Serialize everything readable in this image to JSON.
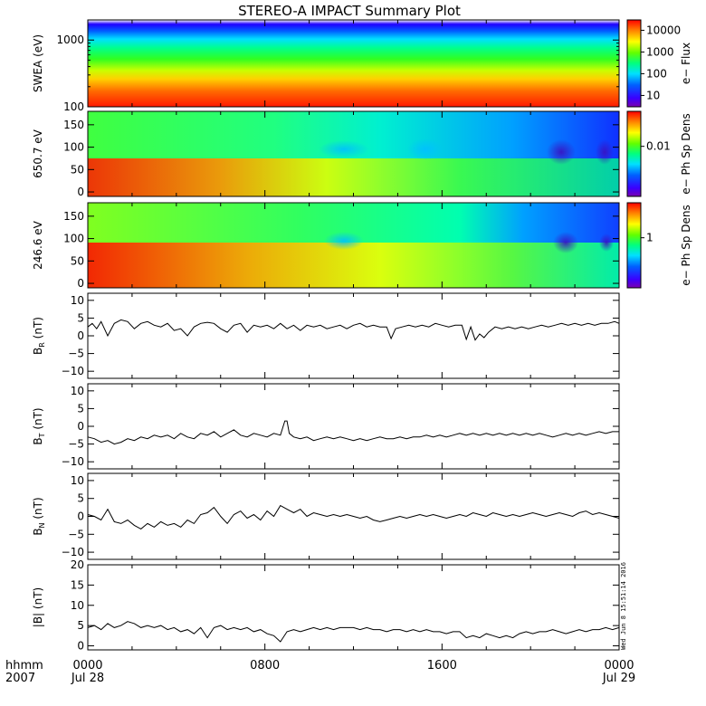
{
  "title": "STEREO-A IMPACT Summary Plot",
  "time_axis": {
    "row1_label": "hhmm",
    "row2_label": "2007",
    "ticks": [
      {
        "time": "0000",
        "date": "Jul 28",
        "hour": 0
      },
      {
        "time": "0800",
        "date": "",
        "hour": 8
      },
      {
        "time": "1600",
        "date": "",
        "hour": 16
      },
      {
        "time": "0000",
        "date": "Jul 29",
        "hour": 24
      }
    ],
    "range_hours": [
      0,
      24
    ]
  },
  "timestamp": "Wed Jun  8 15:51:14 2016",
  "chart_data": [
    {
      "type": "heatmap",
      "name": "swea",
      "ylabel": "SWEA (eV)",
      "yscale": "log",
      "ylim": [
        100,
        2000
      ],
      "yticks": [
        100,
        1000
      ],
      "ytick_labels": [
        "100",
        "1000"
      ],
      "colorbar": {
        "label": "e− Flux",
        "scale": "log",
        "ticks": [
          10,
          100,
          1000,
          10000
        ],
        "tick_labels": [
          "10",
          "100",
          "1000",
          "10000"
        ],
        "range": [
          3,
          30000
        ]
      },
      "z_description": "flux decreases with energy: red at 100 eV, green near 500 eV, blue above 1500 eV"
    },
    {
      "type": "heatmap",
      "name": "pad-650",
      "ylabel": "650.7 eV",
      "ylim": [
        -10,
        180
      ],
      "yticks": [
        0,
        50,
        100,
        150
      ],
      "ytick_labels": [
        "0",
        "50",
        "100",
        "150"
      ],
      "colorbar": {
        "label": "e− Ph Sp Dens",
        "scale": "log",
        "ticks": [
          0.01
        ],
        "tick_labels": [
          "0.01"
        ],
        "range": [
          0.001,
          0.05
        ]
      }
    },
    {
      "type": "heatmap",
      "name": "pad-246",
      "ylabel": "246.6 eV",
      "ylim": [
        -10,
        180
      ],
      "yticks": [
        0,
        50,
        100,
        150
      ],
      "ytick_labels": [
        "0",
        "50",
        "100",
        "150"
      ],
      "colorbar": {
        "label": "e− Ph Sp Dens",
        "scale": "log",
        "ticks": [
          1
        ],
        "tick_labels": [
          "1"
        ],
        "range": [
          0.1,
          5
        ]
      }
    },
    {
      "type": "line",
      "name": "br",
      "ylabel": "B",
      "ylabel_sub": "R",
      "ylabel_unit": "(nT)",
      "ylim": [
        -12,
        12
      ],
      "yticks": [
        -10,
        -5,
        0,
        5,
        10
      ],
      "ytick_labels": [
        "−10",
        "−5",
        "0",
        "5",
        "10"
      ],
      "x": [
        0,
        0.2,
        0.4,
        0.6,
        0.9,
        1.2,
        1.5,
        1.8,
        2.1,
        2.4,
        2.7,
        3.0,
        3.3,
        3.6,
        3.9,
        4.2,
        4.5,
        4.8,
        5.1,
        5.4,
        5.7,
        6.0,
        6.3,
        6.6,
        6.9,
        7.2,
        7.5,
        7.8,
        8.1,
        8.4,
        8.7,
        9.0,
        9.3,
        9.6,
        9.9,
        10.2,
        10.5,
        10.8,
        11.1,
        11.4,
        11.7,
        12.0,
        12.3,
        12.6,
        12.9,
        13.2,
        13.5,
        13.7,
        13.9,
        14.2,
        14.5,
        14.8,
        15.1,
        15.4,
        15.7,
        16.0,
        16.3,
        16.6,
        16.9,
        17.1,
        17.3,
        17.5,
        17.7,
        17.9,
        18.1,
        18.4,
        18.7,
        19.0,
        19.3,
        19.6,
        19.9,
        20.2,
        20.5,
        20.8,
        21.1,
        21.4,
        21.7,
        22.0,
        22.3,
        22.6,
        22.9,
        23.2,
        23.5,
        23.8,
        24.0
      ],
      "values": [
        2.5,
        3.5,
        2.0,
        4.0,
        0.0,
        3.5,
        4.5,
        4.0,
        2.0,
        3.5,
        4.0,
        3.0,
        2.5,
        3.5,
        1.5,
        2.0,
        0.0,
        2.5,
        3.5,
        3.8,
        3.5,
        2.0,
        1.0,
        3.0,
        3.5,
        1.0,
        3.0,
        2.5,
        3.0,
        2.0,
        3.5,
        2.0,
        3.0,
        1.5,
        3.0,
        2.5,
        3.0,
        2.0,
        2.5,
        3.0,
        2.0,
        3.0,
        3.5,
        2.5,
        3.0,
        2.5,
        2.5,
        -0.8,
        2.0,
        2.5,
        3.0,
        2.5,
        3.0,
        2.5,
        3.5,
        3.0,
        2.5,
        3.0,
        3.0,
        -1.0,
        2.5,
        -1.2,
        0.5,
        -0.5,
        1.0,
        2.5,
        2.0,
        2.5,
        2.0,
        2.5,
        2.0,
        2.5,
        3.0,
        2.5,
        3.0,
        3.5,
        3.0,
        3.5,
        3.0,
        3.5,
        3.0,
        3.5,
        3.5,
        4.0,
        3.5
      ]
    },
    {
      "type": "line",
      "name": "bt",
      "ylabel": "B",
      "ylabel_sub": "T",
      "ylabel_unit": "(nT)",
      "ylim": [
        -12,
        12
      ],
      "yticks": [
        -10,
        -5,
        0,
        5,
        10
      ],
      "ytick_labels": [
        "−10",
        "−5",
        "0",
        "5",
        "10"
      ],
      "x": [
        0,
        0.3,
        0.6,
        0.9,
        1.2,
        1.5,
        1.8,
        2.1,
        2.4,
        2.7,
        3.0,
        3.3,
        3.6,
        3.9,
        4.2,
        4.5,
        4.8,
        5.1,
        5.4,
        5.7,
        6.0,
        6.3,
        6.6,
        6.9,
        7.2,
        7.5,
        7.8,
        8.1,
        8.4,
        8.7,
        8.9,
        9.0,
        9.1,
        9.3,
        9.6,
        9.9,
        10.2,
        10.5,
        10.8,
        11.1,
        11.4,
        11.7,
        12.0,
        12.3,
        12.6,
        12.9,
        13.2,
        13.5,
        13.8,
        14.1,
        14.4,
        14.7,
        15.0,
        15.3,
        15.6,
        15.9,
        16.2,
        16.5,
        16.8,
        17.1,
        17.4,
        17.7,
        18.0,
        18.3,
        18.6,
        18.9,
        19.2,
        19.5,
        19.8,
        20.1,
        20.4,
        20.7,
        21.0,
        21.3,
        21.6,
        21.9,
        22.2,
        22.5,
        22.8,
        23.1,
        23.4,
        23.7,
        24.0
      ],
      "values": [
        -3.0,
        -3.5,
        -4.5,
        -4.0,
        -5.0,
        -4.5,
        -3.5,
        -4.0,
        -3.0,
        -3.5,
        -2.5,
        -3.0,
        -2.5,
        -3.5,
        -2.0,
        -3.0,
        -3.5,
        -2.0,
        -2.5,
        -1.5,
        -3.0,
        -2.0,
        -1.0,
        -2.5,
        -3.0,
        -2.0,
        -2.5,
        -3.0,
        -2.0,
        -2.5,
        1.5,
        1.5,
        -2.0,
        -3.0,
        -3.5,
        -3.0,
        -4.0,
        -3.5,
        -3.0,
        -3.5,
        -3.0,
        -3.5,
        -4.0,
        -3.5,
        -4.0,
        -3.5,
        -3.0,
        -3.5,
        -3.5,
        -3.0,
        -3.5,
        -3.0,
        -3.0,
        -2.5,
        -3.0,
        -2.5,
        -3.0,
        -2.5,
        -2.0,
        -2.5,
        -2.0,
        -2.5,
        -2.0,
        -2.5,
        -2.0,
        -2.5,
        -2.0,
        -2.5,
        -2.0,
        -2.5,
        -2.0,
        -2.5,
        -3.0,
        -2.5,
        -2.0,
        -2.5,
        -2.0,
        -2.5,
        -2.0,
        -1.5,
        -2.0,
        -1.5,
        -1.5
      ]
    },
    {
      "type": "line",
      "name": "bn",
      "ylabel": "B",
      "ylabel_sub": "N",
      "ylabel_unit": "(nT)",
      "ylim": [
        -12,
        12
      ],
      "yticks": [
        -10,
        -5,
        0,
        5,
        10
      ],
      "ytick_labels": [
        "−10",
        "−5",
        "0",
        "5",
        "10"
      ],
      "x": [
        0,
        0.3,
        0.6,
        0.9,
        1.2,
        1.5,
        1.8,
        2.1,
        2.4,
        2.7,
        3.0,
        3.3,
        3.6,
        3.9,
        4.2,
        4.5,
        4.8,
        5.1,
        5.4,
        5.7,
        6.0,
        6.3,
        6.6,
        6.9,
        7.2,
        7.5,
        7.8,
        8.1,
        8.4,
        8.7,
        9.0,
        9.3,
        9.6,
        9.9,
        10.2,
        10.5,
        10.8,
        11.1,
        11.4,
        11.7,
        12.0,
        12.3,
        12.6,
        12.9,
        13.2,
        13.5,
        13.8,
        14.1,
        14.4,
        14.7,
        15.0,
        15.3,
        15.6,
        15.9,
        16.2,
        16.5,
        16.8,
        17.1,
        17.4,
        17.7,
        18.0,
        18.3,
        18.6,
        18.9,
        19.2,
        19.5,
        19.8,
        20.1,
        20.4,
        20.7,
        21.0,
        21.3,
        21.6,
        21.9,
        22.2,
        22.5,
        22.8,
        23.1,
        23.4,
        23.7,
        24.0
      ],
      "values": [
        0.5,
        0.0,
        -1.0,
        2.0,
        -1.5,
        -2.0,
        -1.0,
        -2.5,
        -3.5,
        -2.0,
        -3.0,
        -1.5,
        -2.5,
        -2.0,
        -3.0,
        -1.0,
        -2.0,
        0.5,
        1.0,
        2.5,
        0.0,
        -2.0,
        0.5,
        1.5,
        -0.5,
        0.5,
        -1.0,
        1.5,
        0.0,
        3.0,
        2.0,
        1.0,
        2.0,
        0.0,
        1.0,
        0.5,
        0.0,
        0.5,
        0.0,
        0.5,
        0.0,
        -0.5,
        0.0,
        -1.0,
        -1.5,
        -1.0,
        -0.5,
        0.0,
        -0.5,
        0.0,
        0.5,
        0.0,
        0.5,
        0.0,
        -0.5,
        0.0,
        0.5,
        0.0,
        1.0,
        0.5,
        0.0,
        1.0,
        0.5,
        0.0,
        0.5,
        0.0,
        0.5,
        1.0,
        0.5,
        0.0,
        0.5,
        1.0,
        0.5,
        0.0,
        1.0,
        1.5,
        0.5,
        1.0,
        0.5,
        0.0,
        -0.5
      ]
    },
    {
      "type": "line",
      "name": "bmag",
      "ylabel": "|B| (nT)",
      "ylim": [
        -1,
        20
      ],
      "yticks": [
        0,
        5,
        10,
        15,
        20
      ],
      "ytick_labels": [
        "0",
        "5",
        "10",
        "15",
        "20"
      ],
      "x": [
        0,
        0.3,
        0.6,
        0.9,
        1.2,
        1.5,
        1.8,
        2.1,
        2.4,
        2.7,
        3.0,
        3.3,
        3.6,
        3.9,
        4.2,
        4.5,
        4.8,
        5.1,
        5.4,
        5.7,
        6.0,
        6.3,
        6.6,
        6.9,
        7.2,
        7.5,
        7.8,
        8.1,
        8.4,
        8.7,
        9.0,
        9.3,
        9.6,
        9.9,
        10.2,
        10.5,
        10.8,
        11.1,
        11.4,
        11.7,
        12.0,
        12.3,
        12.6,
        12.9,
        13.2,
        13.5,
        13.8,
        14.1,
        14.4,
        14.7,
        15.0,
        15.3,
        15.6,
        15.9,
        16.2,
        16.5,
        16.8,
        17.1,
        17.4,
        17.7,
        18.0,
        18.3,
        18.6,
        18.9,
        19.2,
        19.5,
        19.8,
        20.1,
        20.4,
        20.7,
        21.0,
        21.3,
        21.6,
        21.9,
        22.2,
        22.5,
        22.8,
        23.1,
        23.4,
        23.7,
        24.0
      ],
      "values": [
        4.5,
        5.0,
        4.0,
        5.5,
        4.5,
        5.0,
        6.0,
        5.5,
        4.5,
        5.0,
        4.5,
        5.0,
        4.0,
        4.5,
        3.5,
        4.0,
        3.0,
        4.5,
        2.0,
        4.5,
        5.0,
        4.0,
        4.5,
        4.0,
        4.5,
        3.5,
        4.0,
        3.0,
        2.5,
        1.0,
        3.5,
        4.0,
        3.5,
        4.0,
        4.5,
        4.0,
        4.5,
        4.0,
        4.5,
        4.5,
        4.5,
        4.0,
        4.5,
        4.0,
        4.0,
        3.5,
        4.0,
        4.0,
        3.5,
        4.0,
        3.5,
        4.0,
        3.5,
        3.5,
        3.0,
        3.5,
        3.5,
        2.0,
        2.5,
        2.0,
        3.0,
        2.5,
        2.0,
        2.5,
        2.0,
        3.0,
        3.5,
        3.0,
        3.5,
        3.5,
        4.0,
        3.5,
        3.0,
        3.5,
        4.0,
        3.5,
        4.0,
        4.0,
        4.5,
        4.0,
        4.5
      ]
    }
  ]
}
